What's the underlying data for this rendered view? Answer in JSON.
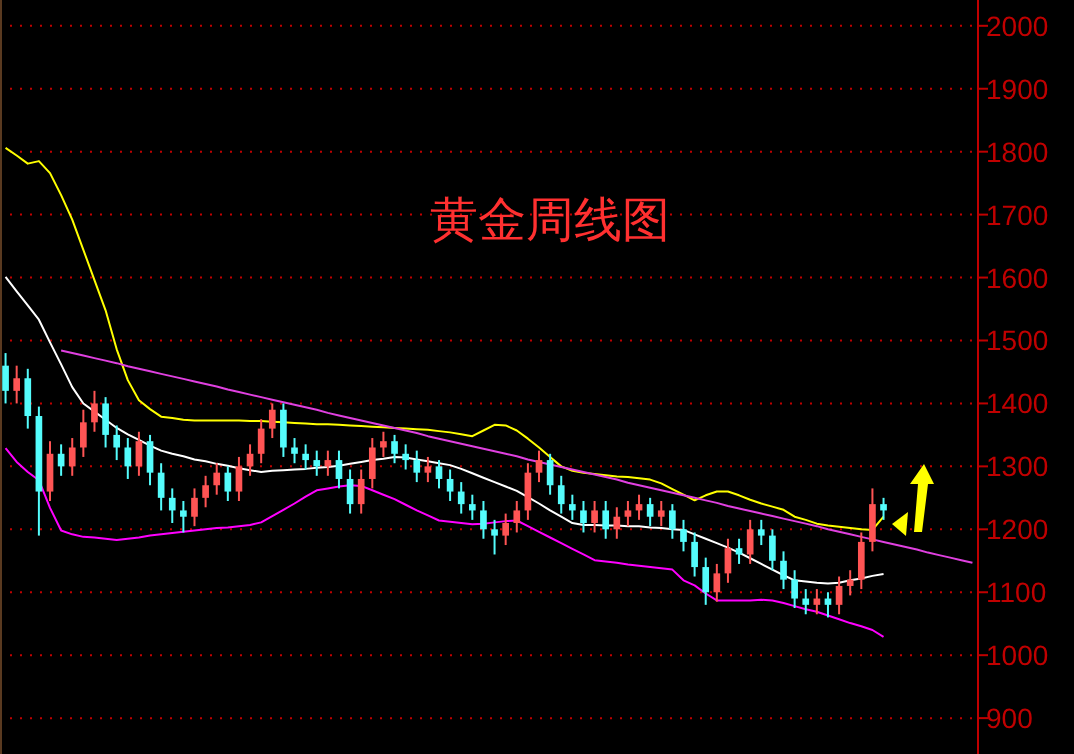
{
  "chart_data": {
    "type": "candlestick",
    "title": "黄金周线图",
    "categories": [
      null,
      null,
      null,
      null,
      null,
      null,
      null,
      null,
      null,
      null,
      null,
      null,
      null,
      null,
      null,
      null,
      null,
      null,
      null,
      null,
      null,
      null,
      null,
      null,
      null,
      null,
      null,
      null,
      null,
      null,
      null,
      null,
      null,
      null,
      null,
      null,
      null,
      null,
      null,
      null,
      null,
      null,
      null,
      null,
      null,
      null,
      null,
      null,
      null,
      null,
      null,
      null,
      null,
      null,
      null,
      null,
      null,
      null,
      null,
      null,
      null,
      null,
      null,
      null,
      null,
      null,
      null,
      null,
      null,
      null,
      null,
      null,
      null,
      null,
      null,
      null,
      null,
      null,
      null,
      null,
      null,
      null,
      null,
      null,
      null,
      null,
      null,
      null
    ],
    "ohlc": [
      [
        1460,
        1480,
        1400,
        1420
      ],
      [
        1420,
        1460,
        1400,
        1440
      ],
      [
        1440,
        1455,
        1360,
        1380
      ],
      [
        1380,
        1395,
        1190,
        1260
      ],
      [
        1260,
        1340,
        1245,
        1320
      ],
      [
        1320,
        1335,
        1285,
        1300
      ],
      [
        1300,
        1345,
        1285,
        1330
      ],
      [
        1330,
        1390,
        1315,
        1370
      ],
      [
        1370,
        1420,
        1355,
        1400
      ],
      [
        1400,
        1410,
        1330,
        1350
      ],
      [
        1350,
        1365,
        1310,
        1330
      ],
      [
        1330,
        1345,
        1280,
        1300
      ],
      [
        1300,
        1355,
        1285,
        1340
      ],
      [
        1340,
        1350,
        1270,
        1290
      ],
      [
        1290,
        1305,
        1230,
        1250
      ],
      [
        1250,
        1265,
        1210,
        1230
      ],
      [
        1230,
        1245,
        1195,
        1220
      ],
      [
        1220,
        1265,
        1205,
        1250
      ],
      [
        1250,
        1285,
        1235,
        1270
      ],
      [
        1270,
        1305,
        1255,
        1290
      ],
      [
        1290,
        1300,
        1245,
        1260
      ],
      [
        1260,
        1315,
        1245,
        1300
      ],
      [
        1300,
        1335,
        1285,
        1320
      ],
      [
        1320,
        1375,
        1305,
        1360
      ],
      [
        1360,
        1400,
        1345,
        1390
      ],
      [
        1390,
        1400,
        1315,
        1330
      ],
      [
        1330,
        1345,
        1305,
        1320
      ],
      [
        1320,
        1335,
        1295,
        1310
      ],
      [
        1310,
        1325,
        1285,
        1300
      ],
      [
        1300,
        1325,
        1285,
        1310
      ],
      [
        1310,
        1325,
        1265,
        1280
      ],
      [
        1280,
        1295,
        1225,
        1240
      ],
      [
        1240,
        1295,
        1225,
        1280
      ],
      [
        1280,
        1345,
        1265,
        1330
      ],
      [
        1330,
        1355,
        1315,
        1340
      ],
      [
        1340,
        1350,
        1305,
        1320
      ],
      [
        1320,
        1335,
        1295,
        1310
      ],
      [
        1310,
        1325,
        1275,
        1290
      ],
      [
        1290,
        1315,
        1275,
        1300
      ],
      [
        1300,
        1310,
        1265,
        1280
      ],
      [
        1280,
        1295,
        1245,
        1260
      ],
      [
        1260,
        1275,
        1225,
        1240
      ],
      [
        1240,
        1255,
        1215,
        1230
      ],
      [
        1230,
        1245,
        1185,
        1200
      ],
      [
        1200,
        1215,
        1160,
        1190
      ],
      [
        1190,
        1225,
        1175,
        1210
      ],
      [
        1210,
        1245,
        1195,
        1230
      ],
      [
        1230,
        1305,
        1215,
        1290
      ],
      [
        1290,
        1325,
        1275,
        1310
      ],
      [
        1310,
        1320,
        1255,
        1270
      ],
      [
        1270,
        1285,
        1225,
        1240
      ],
      [
        1240,
        1255,
        1215,
        1230
      ],
      [
        1230,
        1245,
        1195,
        1210
      ],
      [
        1210,
        1245,
        1195,
        1230
      ],
      [
        1230,
        1245,
        1185,
        1200
      ],
      [
        1200,
        1235,
        1185,
        1220
      ],
      [
        1220,
        1245,
        1205,
        1230
      ],
      [
        1230,
        1255,
        1215,
        1240
      ],
      [
        1240,
        1250,
        1205,
        1220
      ],
      [
        1220,
        1245,
        1205,
        1230
      ],
      [
        1230,
        1240,
        1185,
        1200
      ],
      [
        1200,
        1215,
        1165,
        1180
      ],
      [
        1180,
        1195,
        1125,
        1140
      ],
      [
        1140,
        1155,
        1080,
        1100
      ],
      [
        1100,
        1145,
        1085,
        1130
      ],
      [
        1130,
        1185,
        1115,
        1170
      ],
      [
        1170,
        1185,
        1145,
        1160
      ],
      [
        1160,
        1215,
        1145,
        1200
      ],
      [
        1200,
        1215,
        1175,
        1190
      ],
      [
        1190,
        1200,
        1135,
        1150
      ],
      [
        1150,
        1165,
        1105,
        1120
      ],
      [
        1120,
        1135,
        1075,
        1090
      ],
      [
        1090,
        1105,
        1065,
        1080
      ],
      [
        1080,
        1105,
        1065,
        1090
      ],
      [
        1090,
        1100,
        1060,
        1080
      ],
      [
        1080,
        1125,
        1065,
        1110
      ],
      [
        1110,
        1135,
        1095,
        1120
      ],
      [
        1120,
        1195,
        1105,
        1180
      ],
      [
        1180,
        1265,
        1165,
        1240
      ],
      [
        1240,
        1250,
        1215,
        1230
      ],
      null,
      null,
      null,
      null,
      null,
      null,
      null,
      null
    ],
    "colors": [
      "#54fcfc",
      "#ff5454",
      "#54fcfc",
      "#54fcfc",
      "#ff5454",
      "#54fcfc",
      "#ff5454",
      "#ff5454",
      "#ff5454",
      "#54fcfc",
      "#54fcfc",
      "#54fcfc",
      "#ff5454",
      "#54fcfc",
      "#54fcfc",
      "#54fcfc",
      "#54fcfc",
      "#ff5454",
      "#ff5454",
      "#ff5454",
      "#54fcfc",
      "#ff5454",
      "#ff5454",
      "#ff5454",
      "#ff5454",
      "#54fcfc",
      "#54fcfc",
      "#54fcfc",
      "#54fcfc",
      "#ff5454",
      "#54fcfc",
      "#54fcfc",
      "#ff5454",
      "#ff5454",
      "#ff5454",
      "#54fcfc",
      "#54fcfc",
      "#54fcfc",
      "#ff5454",
      "#54fcfc",
      "#54fcfc",
      "#54fcfc",
      "#54fcfc",
      "#54fcfc",
      "#54fcfc",
      "#ff5454",
      "#ff5454",
      "#ff5454",
      "#ff5454",
      "#54fcfc",
      "#54fcfc",
      "#54fcfc",
      "#54fcfc",
      "#ff5454",
      "#54fcfc",
      "#ff5454",
      "#ff5454",
      "#ff5454",
      "#54fcfc",
      "#ff5454",
      "#54fcfc",
      "#54fcfc",
      "#54fcfc",
      "#54fcfc",
      "#ff5454",
      "#ff5454",
      "#54fcfc",
      "#ff5454",
      "#54fcfc",
      "#54fcfc",
      "#54fcfc",
      "#54fcfc",
      "#54fcfc",
      "#ff5454",
      "#54fcfc",
      "#ff5454",
      "#ff5454",
      "#ff5454",
      "#ff5454",
      "#54fcfc",
      null,
      null,
      null,
      null,
      null,
      null,
      null,
      null
    ],
    "series": [
      {
        "type": "line",
        "color": "#ffff00",
        "values": [
          1806,
          1794,
          1781,
          1785,
          1766,
          1731,
          1692,
          1644,
          1596,
          1548,
          1486,
          1437,
          1405,
          1391,
          1379,
          1377,
          1374,
          1373,
          1373,
          1373,
          1373,
          1373,
          1372,
          1372,
          1371,
          1370,
          1369,
          1368,
          1367,
          1367,
          1366,
          1365,
          1364,
          1363,
          1362,
          1361,
          1360,
          1359,
          1358,
          1356,
          1354,
          1351,
          1348,
          1357,
          1366,
          1365,
          1357,
          1344,
          1330,
          1315,
          1300,
          1293,
          1290,
          1288,
          1286,
          1284,
          1283,
          1281,
          1279,
          1273,
          1264,
          1255,
          1246,
          1254,
          1260,
          1260,
          1254,
          1247,
          1241,
          1236,
          1231,
          1220,
          1215,
          1209,
          1206,
          1204,
          1202,
          1200,
          1199,
          1220,
          null,
          null,
          null,
          null,
          null,
          null,
          null,
          null
        ]
      },
      {
        "type": "line",
        "color": "#ffffff",
        "values": [
          1601,
          1578,
          1556,
          1533,
          1497,
          1462,
          1426,
          1400,
          1387,
          1374,
          1361,
          1351,
          1342,
          1333,
          1325,
          1320,
          1316,
          1311,
          1308,
          1304,
          1301,
          1297,
          1294,
          1291,
          1293,
          1294,
          1295,
          1296,
          1298,
          1299,
          1301,
          1304,
          1307,
          1310,
          1312,
          1315,
          1314,
          1311,
          1308,
          1305,
          1302,
          1296,
          1289,
          1282,
          1275,
          1268,
          1261,
          1251,
          1241,
          1230,
          1220,
          1210,
          1207,
          1207,
          1206,
          1206,
          1205,
          1205,
          1203,
          1202,
          1200,
          1199,
          1192,
          1185,
          1178,
          1171,
          1163,
          1154,
          1145,
          1136,
          1127,
          1119,
          1117,
          1115,
          1114,
          1115,
          1119,
          1122,
          1126,
          1129,
          null,
          null,
          null,
          null,
          null,
          null,
          null,
          null
        ]
      },
      {
        "type": "line",
        "color": "#ff00ff",
        "values": [
          1329,
          1307,
          1291,
          1278,
          1234,
          1198,
          1192,
          1188,
          1187,
          1185,
          1183,
          1185,
          1187,
          1190,
          1192,
          1194,
          1196,
          1198,
          1200,
          1202,
          1203,
          1205,
          1207,
          1211,
          1221,
          1231,
          1241,
          1252,
          1262,
          1265,
          1268,
          1270,
          1269,
          1262,
          1255,
          1248,
          1239,
          1230,
          1222,
          1214,
          1212,
          1210,
          1208,
          1209,
          1211,
          1213,
          1214,
          1205,
          1196,
          1187,
          1178,
          1169,
          1160,
          1151,
          1149,
          1147,
          1144,
          1142,
          1140,
          1138,
          1136,
          1119,
          1111,
          1098,
          1087,
          1087,
          1087,
          1087,
          1088,
          1087,
          1083,
          1078,
          1073,
          1069,
          1063,
          1057,
          1051,
          1046,
          1040,
          1029,
          null,
          null,
          null,
          null,
          null,
          null,
          null,
          null
        ]
      },
      {
        "type": "line",
        "color": "#e040e0",
        "values": [
          null,
          null,
          null,
          null,
          null,
          1484,
          1480,
          1476,
          1472,
          1468,
          1464,
          1459,
          1455,
          1451,
          1447,
          1443,
          1439,
          1435,
          1431,
          1427,
          1422,
          1418,
          1414,
          1410,
          1406,
          1402,
          1398,
          1394,
          1390,
          1385,
          1381,
          1377,
          1373,
          1369,
          1365,
          1361,
          1357,
          1353,
          1348,
          1344,
          1340,
          1336,
          1332,
          1328,
          1324,
          1320,
          1316,
          1311,
          1307,
          1303,
          1299,
          1295,
          1291,
          1287,
          1283,
          1279,
          1274,
          1270,
          1266,
          1262,
          1258,
          1254,
          1250,
          1246,
          1242,
          1237,
          1233,
          1229,
          1225,
          1221,
          1217,
          1213,
          1209,
          1205,
          1200,
          1196,
          1192,
          1188,
          1184,
          1180,
          1176,
          1172,
          1168,
          1163,
          1159,
          1155,
          1151,
          1147
        ]
      }
    ],
    "ylim": [
      843,
      2041
    ],
    "yticks": [
      900,
      1000,
      1100,
      1200,
      1300,
      1400,
      1500,
      1600,
      1700,
      1800,
      1900,
      2000
    ],
    "grid": "y"
  }
}
